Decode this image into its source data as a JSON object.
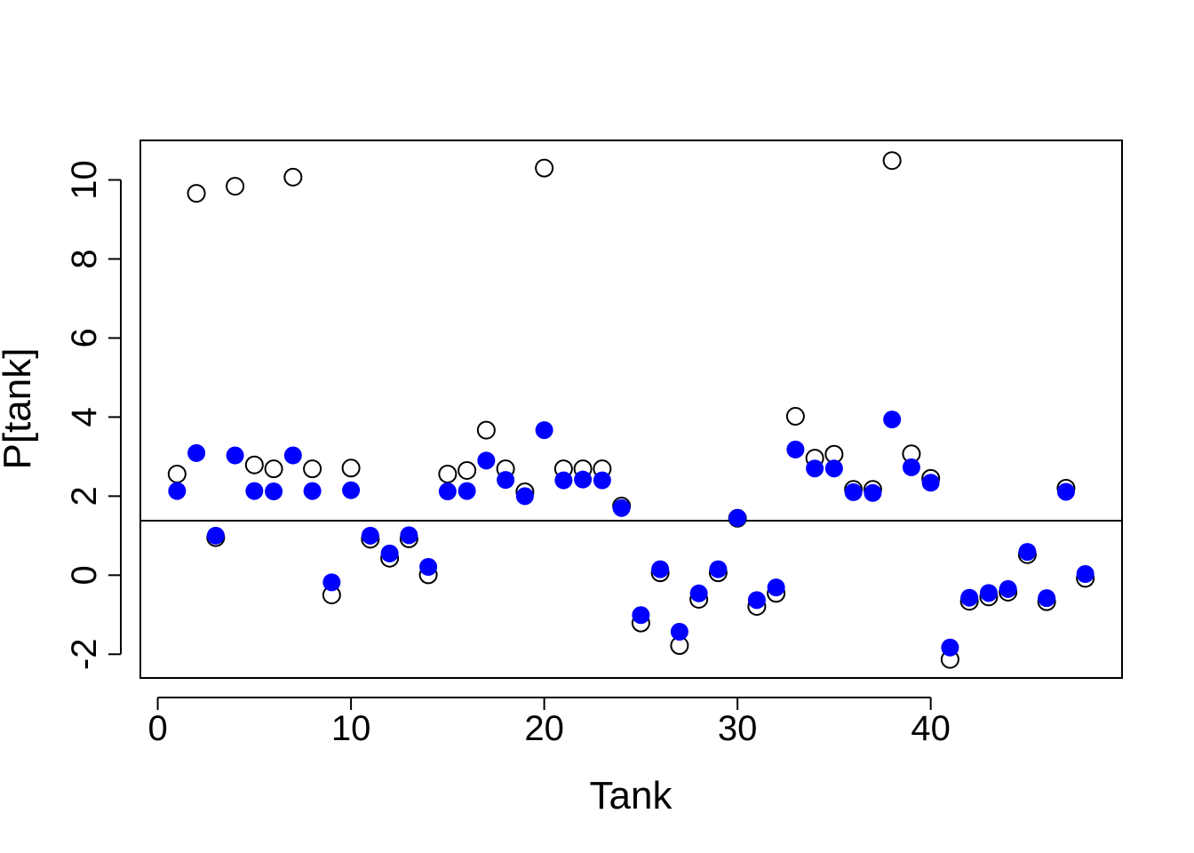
{
  "chart_data": {
    "type": "scatter",
    "title": "",
    "xlabel": "Tank",
    "ylabel": "P[tank]",
    "xlim": [
      -0.9,
      49.9
    ],
    "ylim": [
      -2.6,
      11.0
    ],
    "x_ticks": [
      0,
      10,
      20,
      30,
      40
    ],
    "x_tick_labels": [
      "0",
      "10",
      "20",
      "30",
      "40"
    ],
    "y_ticks": [
      -2,
      0,
      2,
      4,
      6,
      8,
      10
    ],
    "y_tick_labels": [
      "-2",
      "0",
      "2",
      "4",
      "6",
      "8",
      "10"
    ],
    "hline": 1.38,
    "grid": false,
    "legend": "none",
    "colors": {
      "open": "#000000",
      "filled": "#0000ff",
      "line": "#000000"
    },
    "series": [
      {
        "marker": "open-circle",
        "x": [
          1,
          2,
          3,
          4,
          5,
          6,
          7,
          8,
          9,
          10,
          11,
          12,
          13,
          14,
          15,
          16,
          17,
          18,
          19,
          20,
          21,
          22,
          23,
          24,
          25,
          26,
          27,
          28,
          29,
          30,
          31,
          32,
          33,
          34,
          35,
          36,
          37,
          38,
          39,
          40,
          41,
          42,
          43,
          44,
          45,
          46,
          47,
          48
        ],
        "y": [
          2.56,
          9.66,
          0.95,
          9.84,
          2.79,
          2.69,
          10.07,
          2.69,
          -0.5,
          2.71,
          0.91,
          0.43,
          0.92,
          0.01,
          2.56,
          2.65,
          3.67,
          2.69,
          2.11,
          10.3,
          2.69,
          2.69,
          2.69,
          1.75,
          -1.21,
          0.06,
          -1.78,
          -0.61,
          0.06,
          1.44,
          -0.79,
          -0.46,
          4.02,
          2.96,
          3.06,
          2.17,
          2.17,
          10.49,
          3.07,
          2.45,
          -2.13,
          -0.66,
          -0.55,
          -0.43,
          0.52,
          -0.67,
          2.2,
          -0.08
        ]
      },
      {
        "marker": "filled-circle",
        "x": [
          1,
          2,
          3,
          4,
          5,
          6,
          7,
          8,
          9,
          10,
          11,
          12,
          13,
          14,
          15,
          16,
          17,
          18,
          19,
          20,
          21,
          22,
          23,
          24,
          25,
          26,
          27,
          28,
          29,
          30,
          31,
          32,
          33,
          34,
          35,
          36,
          37,
          38,
          39,
          40,
          41,
          42,
          43,
          44,
          45,
          46,
          47,
          48
        ],
        "y": [
          2.13,
          3.09,
          1.0,
          3.03,
          2.13,
          2.12,
          3.03,
          2.13,
          -0.18,
          2.15,
          1.0,
          0.55,
          1.01,
          0.21,
          2.12,
          2.13,
          2.9,
          2.41,
          2.0,
          3.67,
          2.4,
          2.42,
          2.4,
          1.7,
          -1.01,
          0.15,
          -1.43,
          -0.46,
          0.15,
          1.45,
          -0.63,
          -0.31,
          3.18,
          2.7,
          2.7,
          2.1,
          2.08,
          3.94,
          2.73,
          2.34,
          -1.83,
          -0.57,
          -0.45,
          -0.35,
          0.59,
          -0.58,
          2.11,
          0.03
        ]
      }
    ]
  }
}
